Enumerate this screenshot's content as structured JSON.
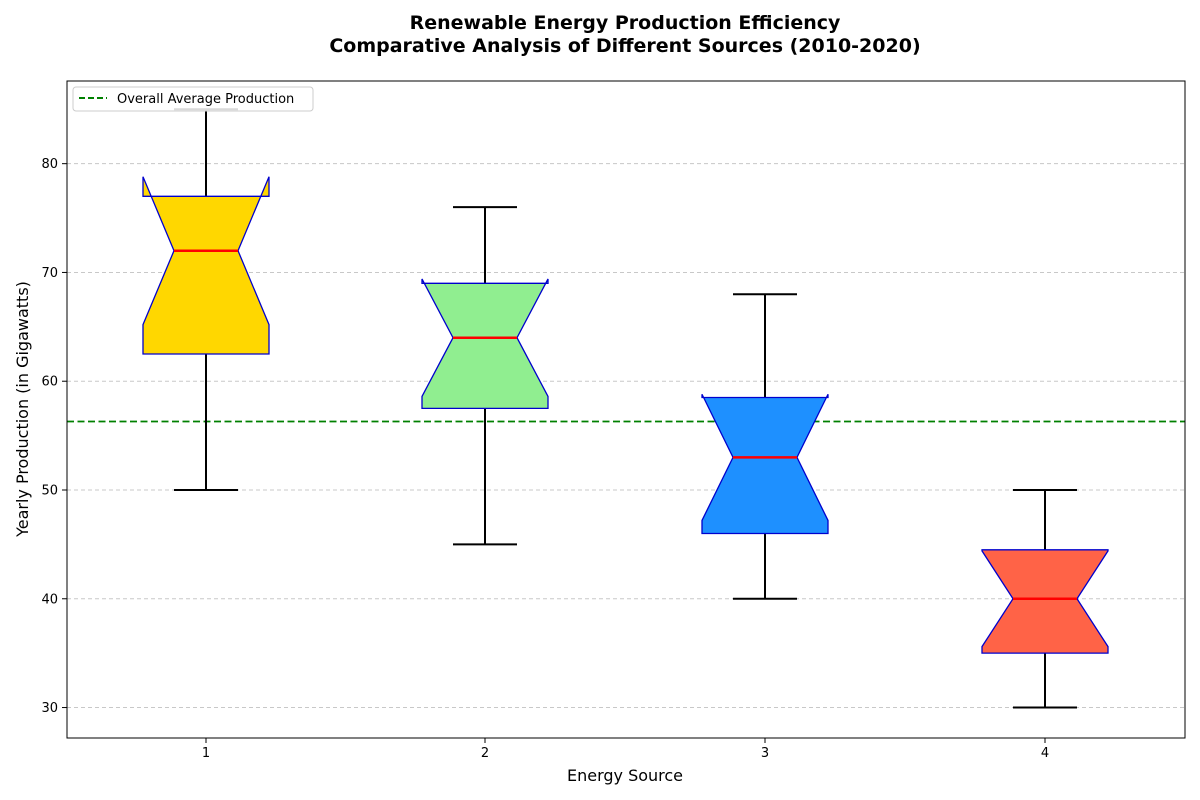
{
  "chart_data": {
    "type": "box",
    "title_line1": "Renewable Energy Production Efficiency",
    "title_line2": "Comparative Analysis of Different Sources (2010-2020)",
    "xlabel": "Energy Source",
    "ylabel": "Yearly Production (in Gigawatts)",
    "categories": [
      "1",
      "2",
      "3",
      "4"
    ],
    "ylim": [
      27.2,
      87.6
    ],
    "yticks": [
      30,
      40,
      50,
      60,
      70,
      80
    ],
    "grid": "y-dashed",
    "notched": true,
    "boxes": [
      {
        "category": "1",
        "whislo": 50,
        "q1": 62.5,
        "med": 72,
        "q3": 77,
        "whishi": 85,
        "notch_lo": 65.2,
        "notch_hi": 78.8,
        "fill": "#FFD700"
      },
      {
        "category": "2",
        "whislo": 45,
        "q1": 57.5,
        "med": 64,
        "q3": 69,
        "whishi": 76,
        "notch_lo": 58.6,
        "notch_hi": 69.4,
        "fill": "#90EE90"
      },
      {
        "category": "3",
        "whislo": 40,
        "q1": 46,
        "med": 53,
        "q3": 58.5,
        "whishi": 68,
        "notch_lo": 47.2,
        "notch_hi": 58.8,
        "fill": "#1E90FF"
      },
      {
        "category": "4",
        "whislo": 30,
        "q1": 35,
        "med": 40,
        "q3": 44.5,
        "whishi": 50,
        "notch_lo": 35.6,
        "notch_hi": 44.4,
        "fill": "#FF6347"
      }
    ],
    "reference_line": {
      "value": 56.3,
      "label": "Overall Average Production",
      "color": "#008000",
      "style": "dashed"
    },
    "legend": {
      "position": "top-left",
      "entries": [
        "Overall Average Production"
      ]
    },
    "colors": {
      "box_edge": "#0000CD",
      "median": "#FF0000",
      "whisker": "#000000",
      "grid": "#C8C8C8"
    }
  }
}
